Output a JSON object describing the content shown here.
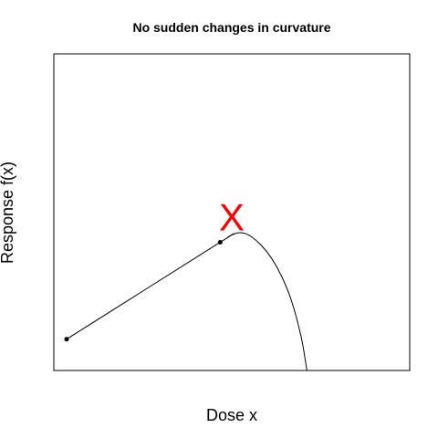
{
  "chart_data": {
    "type": "line",
    "title": "No sudden changes in curvature",
    "xlabel": "Dose x",
    "ylabel": "Response f(x)",
    "xlim": [
      0,
      1
    ],
    "ylim": [
      0,
      1
    ],
    "grid": false,
    "series": [
      {
        "x": [
          0.0,
          0.465,
          0.487,
          0.5,
          0.52,
          0.54,
          0.56,
          0.59,
          0.62,
          0.65,
          0.68,
          0.71,
          0.7275
        ],
        "y": [
          0.103,
          0.422,
          0.438,
          0.446,
          0.453,
          0.451,
          0.44,
          0.411,
          0.37,
          0.312,
          0.232,
          0.111,
          0.0
        ]
      }
    ],
    "points": [
      {
        "x": 0.0,
        "y": 0.103
      },
      {
        "x": 0.465,
        "y": 0.422
      }
    ],
    "annotations": [
      {
        "text": "X",
        "x": 0.5,
        "y": 0.494,
        "color": "#ff0000"
      }
    ]
  }
}
